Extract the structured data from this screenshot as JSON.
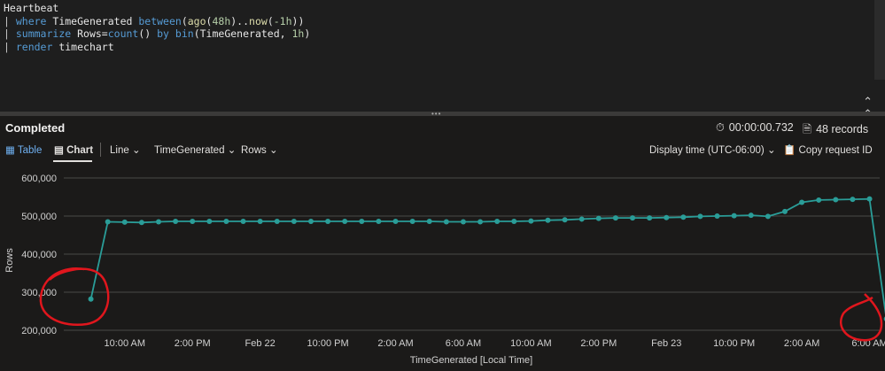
{
  "query": {
    "lines": [
      {
        "parts": [
          {
            "t": "Heartbeat",
            "c": "plain"
          }
        ]
      },
      {
        "parts": [
          {
            "t": "| ",
            "c": "pipe"
          },
          {
            "t": "where",
            "c": "kw"
          },
          {
            "t": " TimeGenerated ",
            "c": "plain"
          },
          {
            "t": "between",
            "c": "kw"
          },
          {
            "t": "(",
            "c": "plain"
          },
          {
            "t": "ago",
            "c": "fn"
          },
          {
            "t": "(",
            "c": "plain"
          },
          {
            "t": "48h",
            "c": "num"
          },
          {
            "t": ")..",
            "c": "plain"
          },
          {
            "t": "now",
            "c": "fn"
          },
          {
            "t": "(",
            "c": "plain"
          },
          {
            "t": "-1h",
            "c": "num"
          },
          {
            "t": "))",
            "c": "plain"
          }
        ]
      },
      {
        "parts": [
          {
            "t": "| ",
            "c": "pipe"
          },
          {
            "t": "summarize",
            "c": "kw"
          },
          {
            "t": " Rows=",
            "c": "plain"
          },
          {
            "t": "count",
            "c": "kw"
          },
          {
            "t": "() ",
            "c": "plain"
          },
          {
            "t": "by",
            "c": "kw"
          },
          {
            "t": " ",
            "c": "plain"
          },
          {
            "t": "bin",
            "c": "kw"
          },
          {
            "t": "(TimeGenerated, ",
            "c": "plain"
          },
          {
            "t": "1h",
            "c": "num"
          },
          {
            "t": ")",
            "c": "plain"
          }
        ]
      },
      {
        "parts": [
          {
            "t": "| ",
            "c": "pipe"
          },
          {
            "t": "render",
            "c": "kw"
          },
          {
            "t": " timechart",
            "c": "plain"
          }
        ]
      }
    ]
  },
  "editor": {
    "collapse_icon": "chevron-double-up"
  },
  "status": {
    "title": "Completed",
    "duration": "00:00:00.732",
    "records": "48 records",
    "timer_icon": "stopwatch-icon",
    "records_icon": "document-icon"
  },
  "toolbar": {
    "table_label": "Table",
    "chart_label": "Chart",
    "chart_type": "Line",
    "x_column": "TimeGenerated",
    "y_column": "Rows",
    "display_time": "Display time (UTC-06:00)",
    "copy_request": "Copy request ID"
  },
  "colors": {
    "series": "#2a9d98",
    "annotation": "#e0161d",
    "background": "#1b1a19"
  },
  "chart_data": {
    "type": "line",
    "xlabel": "TimeGenerated [Local Time]",
    "ylabel": "Rows",
    "ylim": [
      200000,
      600000
    ],
    "yticks": [
      200000,
      300000,
      400000,
      500000,
      600000
    ],
    "ytick_labels": [
      "200,000",
      "300,000",
      "400,000",
      "500,000",
      "600,000"
    ],
    "x_range_hours": [
      -1.6,
      46.6
    ],
    "xticks": [
      {
        "h": 2,
        "label": "10:00 AM"
      },
      {
        "h": 6,
        "label": "2:00 PM"
      },
      {
        "h": 10,
        "label": "Feb 22"
      },
      {
        "h": 14,
        "label": "10:00 PM"
      },
      {
        "h": 18,
        "label": "2:00 AM"
      },
      {
        "h": 22,
        "label": "6:00 AM"
      },
      {
        "h": 26,
        "label": "10:00 AM"
      },
      {
        "h": 30,
        "label": "2:00 PM"
      },
      {
        "h": 34,
        "label": "Feb 23"
      },
      {
        "h": 38,
        "label": "10:00 PM"
      },
      {
        "h": 42,
        "label": "2:00 AM"
      },
      {
        "h": 46,
        "label": "6:00 AM"
      }
    ],
    "grid": true,
    "series": [
      {
        "x": [
          0,
          1,
          2,
          3,
          4,
          5,
          6,
          7,
          8,
          9,
          10,
          11,
          12,
          13,
          14,
          15,
          16,
          17,
          18,
          19,
          20,
          21,
          22,
          23,
          24,
          25,
          26,
          27,
          28,
          29,
          30,
          31,
          32,
          33,
          34,
          35,
          36,
          37,
          38,
          39,
          40,
          41,
          42,
          43,
          44,
          45,
          46,
          47
        ],
        "values": [
          282000,
          485000,
          484000,
          483000,
          485000,
          486000,
          486000,
          486000,
          486000,
          486000,
          486000,
          486000,
          486000,
          486000,
          486000,
          486000,
          486000,
          486000,
          486000,
          486000,
          486000,
          485000,
          485000,
          485000,
          486000,
          486000,
          487000,
          489000,
          490000,
          492000,
          494000,
          495000,
          495000,
          495000,
          496000,
          497000,
          499000,
          500000,
          501000,
          502000,
          499000,
          512000,
          536000,
          542000,
          543000,
          544000,
          545000,
          230000
        ]
      }
    ]
  }
}
